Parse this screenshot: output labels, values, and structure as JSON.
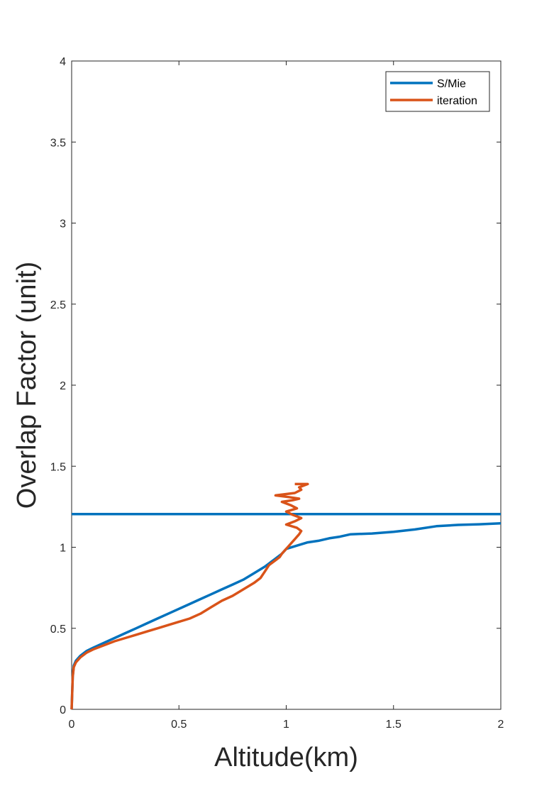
{
  "chart_data": {
    "type": "line",
    "title": "",
    "xlabel": "Altitude(km)",
    "ylabel": "Overlap Factor (unit)",
    "xlim": [
      0,
      2
    ],
    "ylim": [
      0,
      4
    ],
    "xticks": [
      0,
      0.5,
      1,
      1.5,
      2
    ],
    "xtick_labels": [
      "0",
      "0.5",
      "1",
      "1.5",
      "2"
    ],
    "yticks": [
      0,
      0.5,
      1,
      1.5,
      2,
      2.5,
      3,
      3.5,
      4
    ],
    "ytick_labels": [
      "0",
      "0.5",
      "1",
      "1.5",
      "2",
      "2.5",
      "3",
      "3.5",
      "4"
    ],
    "grid": false,
    "legend": {
      "position": "top-right"
    },
    "series": [
      {
        "name": "S/Mie",
        "color": "#0072BD",
        "x": [
          0.0,
          0.005,
          0.01,
          0.02,
          0.04,
          0.07,
          0.1,
          0.15,
          0.2,
          0.25,
          0.3,
          0.35,
          0.4,
          0.45,
          0.5,
          0.55,
          0.6,
          0.65,
          0.7,
          0.75,
          0.8,
          0.85,
          0.9,
          0.92,
          0.95,
          0.98,
          1.0,
          1.05,
          1.1,
          1.15,
          1.2,
          1.25,
          1.3,
          1.4,
          1.5,
          1.6,
          1.7,
          1.8,
          1.9,
          2.0
        ],
        "y": [
          0.0,
          0.2,
          0.27,
          0.3,
          0.33,
          0.36,
          0.38,
          0.41,
          0.44,
          0.47,
          0.5,
          0.53,
          0.56,
          0.59,
          0.62,
          0.65,
          0.68,
          0.71,
          0.74,
          0.77,
          0.8,
          0.84,
          0.88,
          0.9,
          0.93,
          0.96,
          0.99,
          1.01,
          1.03,
          1.04,
          1.055,
          1.065,
          1.08,
          1.085,
          1.095,
          1.11,
          1.13,
          1.138,
          1.142,
          1.148
        ]
      },
      {
        "name": "S/Mie",
        "color": "#0072BD",
        "x": [
          0.0,
          2.0
        ],
        "y": [
          1.205,
          1.205
        ]
      },
      {
        "name": "iteration",
        "color": "#D95319",
        "x": [
          0.0,
          0.005,
          0.01,
          0.02,
          0.04,
          0.07,
          0.1,
          0.15,
          0.2,
          0.25,
          0.3,
          0.35,
          0.4,
          0.45,
          0.5,
          0.55,
          0.6,
          0.65,
          0.7,
          0.75,
          0.8,
          0.85,
          0.88,
          0.9,
          0.92,
          0.95,
          0.97,
          0.98,
          1.0,
          1.02,
          1.04,
          1.06,
          1.07,
          1.05,
          1.0,
          1.04,
          1.07,
          1.03,
          1.0,
          1.05,
          1.02,
          0.98,
          1.03,
          1.06,
          1.01,
          0.95,
          1.04,
          1.07,
          1.06,
          1.1,
          1.04
        ],
        "y": [
          0.0,
          0.2,
          0.26,
          0.29,
          0.32,
          0.35,
          0.37,
          0.395,
          0.42,
          0.44,
          0.46,
          0.48,
          0.5,
          0.52,
          0.54,
          0.56,
          0.59,
          0.63,
          0.67,
          0.7,
          0.74,
          0.78,
          0.81,
          0.85,
          0.89,
          0.92,
          0.94,
          0.96,
          0.99,
          1.02,
          1.05,
          1.08,
          1.1,
          1.12,
          1.14,
          1.16,
          1.18,
          1.2,
          1.22,
          1.24,
          1.26,
          1.28,
          1.29,
          1.3,
          1.31,
          1.32,
          1.335,
          1.355,
          1.37,
          1.39,
          1.39
        ]
      }
    ]
  }
}
